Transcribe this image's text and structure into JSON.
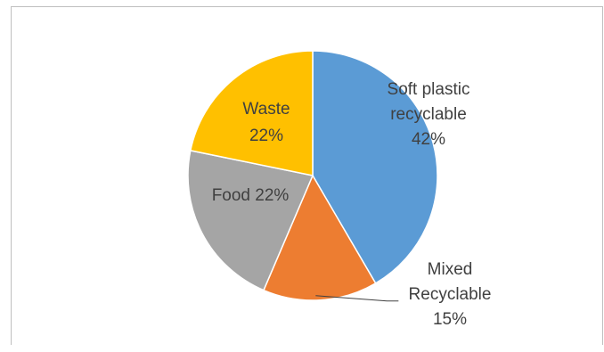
{
  "chart_data": {
    "type": "pie",
    "slices": [
      {
        "label": "Soft plastic recyclable",
        "label_lines": [
          "Soft plastic",
          "recyclable",
          "42%"
        ],
        "value": 42,
        "color": "#5b9bd5"
      },
      {
        "label": "Mixed Recyclable",
        "label_lines": [
          "Mixed",
          "Recyclable",
          "15%"
        ],
        "value": 15,
        "color": "#ed7d31"
      },
      {
        "label": "Food",
        "label_lines": [
          "Food  22%"
        ],
        "value": 22,
        "color": "#a5a5a5"
      },
      {
        "label": "Waste",
        "label_lines": [
          "Waste",
          "22%"
        ],
        "value": 22,
        "color": "#ffc000"
      }
    ],
    "legend": "none"
  }
}
